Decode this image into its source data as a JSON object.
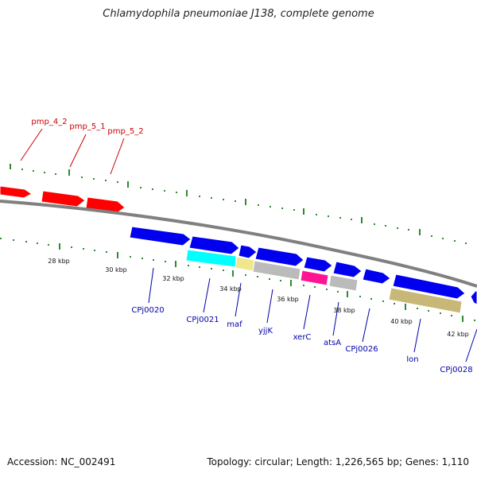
{
  "title": "Chlamydophila pneumoniae J138, complete genome",
  "accession": "Accession: NC_002491",
  "topology": "Topology: circular; Length: 1,226,565 bp; Genes: 1,110",
  "colors": {
    "backbone": "#808080",
    "tick": "#2e8b2e",
    "red_gene": "#ff0000",
    "blue_gene": "#0000ee",
    "cyan_gene": "#00ffff",
    "khaki_gene": "#c8b878",
    "pale_yellow_gene": "#f0e68c",
    "gray_gene": "#bbbbbb",
    "magenta_gene": "#ff1493",
    "red_label": "#cc0000",
    "blue_label": "#0000aa"
  },
  "scale_labels": [
    "28 kbp",
    "30 kbp",
    "32 kbp",
    "34 kbp",
    "36 kbp",
    "38 kbp",
    "40 kbp",
    "42 kbp"
  ],
  "top_labels": [
    "pmp_4_2",
    "pmp_5_1",
    "pmp_5_2"
  ],
  "bottom_labels": [
    "CPj0020",
    "CPj0021",
    "maf",
    "yjjK",
    "xerC",
    "atsA",
    "CPj0026",
    "lon",
    "CPj0028"
  ]
}
